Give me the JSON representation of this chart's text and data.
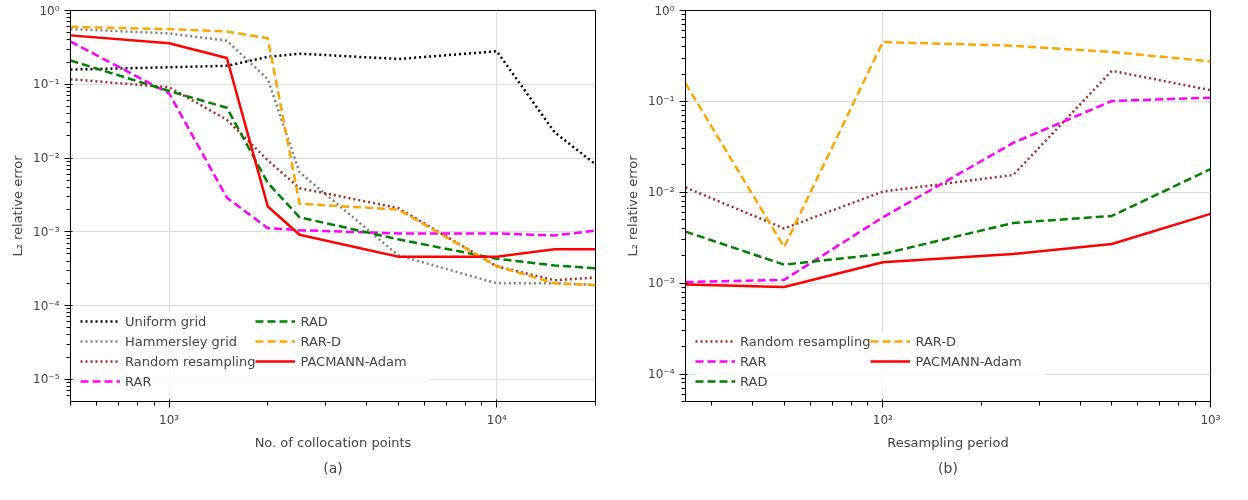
{
  "chart_data": [
    {
      "type": "line",
      "xlabel": "No. of collocation points",
      "ylabel": "L₂ relative error",
      "annotations": [
        "(a)"
      ],
      "log": "xy",
      "grid": true,
      "legend": "bottom left",
      "x": [
        500,
        1000,
        1500,
        2000,
        2500,
        5000,
        10000,
        15000,
        20000
      ],
      "xlim": [
        500,
        20000
      ],
      "ylim": [
        5e-06,
        1
      ],
      "xticks": [
        {
          "value": 1000,
          "label": "10³"
        },
        {
          "value": 10000,
          "label": "10⁴"
        }
      ],
      "yticks": [
        {
          "value": 1e-05,
          "label": "10⁻⁵"
        },
        {
          "value": 0.0001,
          "label": "10⁻⁴"
        },
        {
          "value": 0.001,
          "label": "10⁻³"
        },
        {
          "value": 0.01,
          "label": "10⁻²"
        },
        {
          "value": 0.1,
          "label": "10⁻¹"
        },
        {
          "value": 1,
          "label": "10⁰"
        }
      ],
      "series": [
        {
          "name": "Uniform grid",
          "color": "#000000",
          "line_style": "dotted",
          "values": [
            0.158,
            0.17,
            0.178,
            0.235,
            0.26,
            0.22,
            0.28,
            0.0224,
            0.0082
          ]
        },
        {
          "name": "Hammersley grid",
          "color": "#808080",
          "line_style": "dotted",
          "values": [
            0.56,
            0.49,
            0.39,
            0.117,
            0.0064,
            0.00048,
            0.0002,
            0.0002,
            0.00019
          ]
        },
        {
          "name": "Random resampling",
          "color": "#a52a2a",
          "line_style": "dotted",
          "values": [
            0.117,
            0.091,
            0.033,
            0.0093,
            0.0039,
            0.0021,
            0.00034,
            0.00022,
            0.00024
          ]
        },
        {
          "name": "RAR",
          "color": "#ff00ff",
          "line_style": "dashed",
          "values": [
            0.38,
            0.075,
            0.0029,
            0.00112,
            0.00105,
            0.00095,
            0.00095,
            0.00089,
            0.00104
          ]
        },
        {
          "name": "RAD",
          "color": "#008000",
          "line_style": "dashed",
          "values": [
            0.21,
            0.081,
            0.048,
            0.0046,
            0.00157,
            0.00079,
            0.00043,
            0.00035,
            0.00032
          ]
        },
        {
          "name": "RAR-D",
          "color": "#ffa500",
          "line_style": "dashed",
          "values": [
            0.6,
            0.56,
            0.52,
            0.42,
            0.0024,
            0.002,
            0.00034,
            0.0002,
            0.00019
          ]
        },
        {
          "name": "PACMANN-Adam",
          "color": "#ff0000",
          "line_style": "solid",
          "values": [
            0.46,
            0.36,
            0.227,
            0.0022,
            0.00091,
            0.00046,
            0.00046,
            0.00058,
            0.00058
          ]
        }
      ]
    },
    {
      "type": "line",
      "xlabel": "Resampling period",
      "ylabel": "L₂ relative error",
      "annotations": [
        "(b)"
      ],
      "log": "xy",
      "grid": true,
      "legend": "bottom left",
      "x": [
        25,
        50,
        100,
        250,
        500,
        1000
      ],
      "xlim": [
        25,
        1000
      ],
      "ylim": [
        5e-05,
        1
      ],
      "xticks": [
        {
          "value": 100,
          "label": "10²"
        },
        {
          "value": 1000,
          "label": "10³"
        }
      ],
      "yticks": [
        {
          "value": 0.0001,
          "label": "10⁻⁴"
        },
        {
          "value": 0.001,
          "label": "10⁻³"
        },
        {
          "value": 0.01,
          "label": "10⁻²"
        },
        {
          "value": 0.1,
          "label": "10⁻¹"
        },
        {
          "value": 1,
          "label": "10⁰"
        }
      ],
      "series": [
        {
          "name": "Random resampling",
          "color": "#a52a2a",
          "line_style": "dotted",
          "values": [
            0.0113,
            0.004,
            0.0102,
            0.0155,
            0.217,
            0.133
          ]
        },
        {
          "name": "RAR",
          "color": "#ff00ff",
          "line_style": "dashed",
          "values": [
            0.00103,
            0.00109,
            0.0053,
            0.035,
            0.101,
            0.11
          ]
        },
        {
          "name": "RAD",
          "color": "#008000",
          "line_style": "dashed",
          "values": [
            0.0037,
            0.0016,
            0.0021,
            0.0046,
            0.0055,
            0.018
          ]
        },
        {
          "name": "RAR-D",
          "color": "#ffa500",
          "line_style": "dashed",
          "values": [
            0.158,
            0.0025,
            0.45,
            0.41,
            0.35,
            0.275
          ]
        },
        {
          "name": "PACMANN-Adam",
          "color": "#ff0000",
          "line_style": "solid",
          "values": [
            0.00097,
            0.00091,
            0.0017,
            0.0021,
            0.0027,
            0.0058
          ]
        }
      ]
    }
  ]
}
